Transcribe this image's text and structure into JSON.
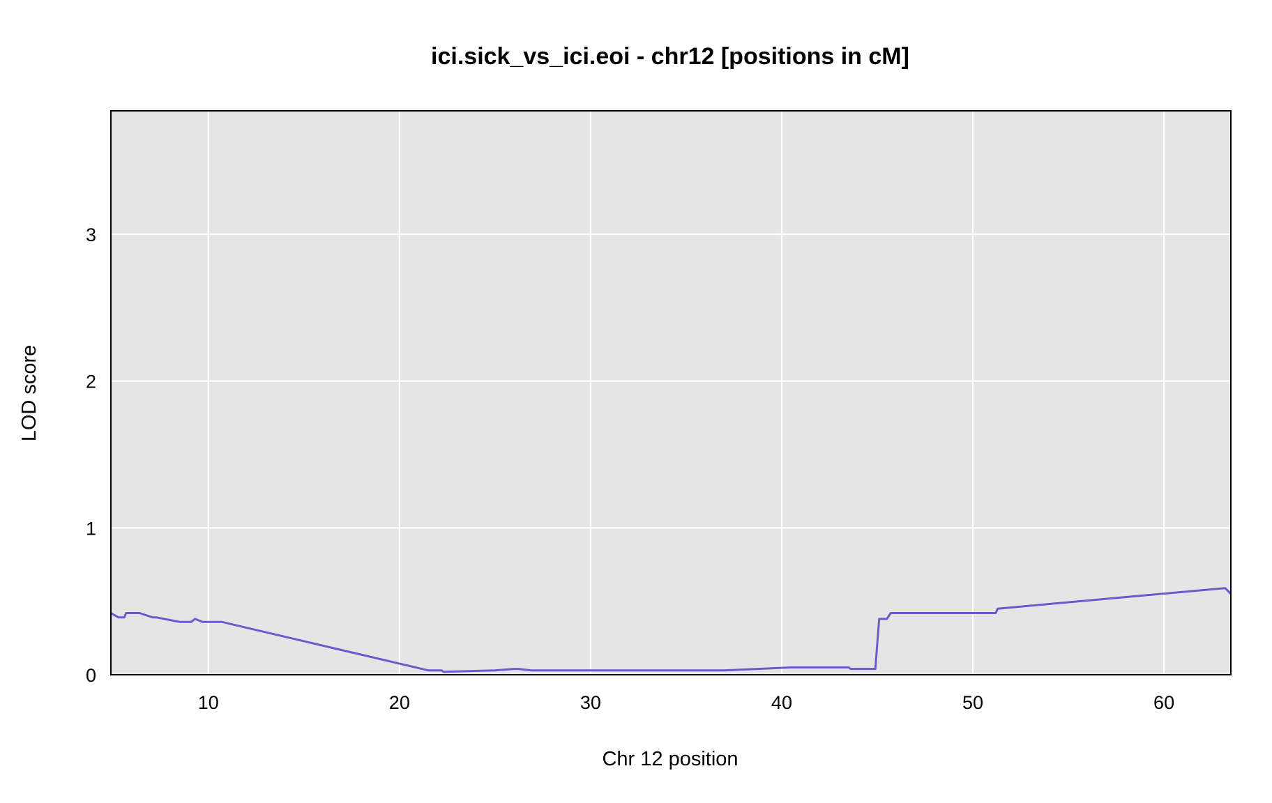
{
  "chart_data": {
    "type": "line",
    "title": "ici.sick_vs_ici.eoi - chr12 [positions in cM]",
    "xlabel": "Chr 12 position",
    "ylabel": "LOD score",
    "xlim": [
      4.9,
      63.5
    ],
    "ylim": [
      0,
      3.84
    ],
    "xticks": [
      10,
      20,
      30,
      40,
      50,
      60
    ],
    "yticks": [
      0,
      1,
      2,
      3
    ],
    "grid": true,
    "plot_background": "#e5e5e5",
    "grid_color": "#ffffff",
    "series": [
      {
        "color": "#6a5acd",
        "x": [
          4.9,
          5.3,
          5.6,
          5.7,
          6.4,
          7.1,
          7.3,
          8.5,
          8.9,
          9.1,
          9.3,
          9.7,
          10.7,
          21.5,
          22.2,
          22.3,
          25.0,
          26.0,
          26.2,
          26.9,
          33.5,
          37.0,
          40.5,
          43.5,
          43.6,
          44.9,
          45.1,
          45.5,
          45.7,
          51.2,
          51.3,
          63.2,
          63.5
        ],
        "y": [
          0.42,
          0.39,
          0.39,
          0.42,
          0.42,
          0.39,
          0.39,
          0.36,
          0.36,
          0.36,
          0.38,
          0.36,
          0.36,
          0.03,
          0.03,
          0.02,
          0.03,
          0.04,
          0.04,
          0.03,
          0.03,
          0.03,
          0.05,
          0.05,
          0.04,
          0.04,
          0.38,
          0.38,
          0.42,
          0.42,
          0.45,
          0.59,
          0.55
        ]
      }
    ]
  }
}
